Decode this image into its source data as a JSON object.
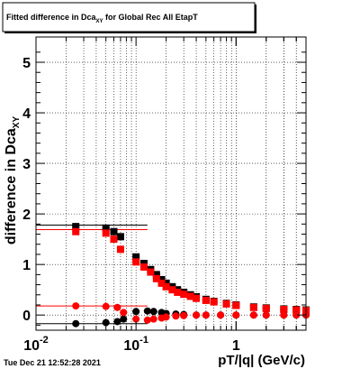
{
  "chart_data": {
    "type": "scatter",
    "title_main": "Fitted difference in Dca",
    "title_sub": "XY",
    "title_tail": " for Global Rec All EtapT",
    "xlabel": "pT/|q| (GeV/c)",
    "ylabel_main": "difference in Dca",
    "ylabel_sub": "XY",
    "timestamp": "Tue Dec 21 12:52:28 2021",
    "xscale": "log",
    "xlim": [
      0.01,
      5.0
    ],
    "ylim": [
      -0.3,
      5.5
    ],
    "grid": true,
    "x_ticks": [
      {
        "value": 0.01,
        "label": "10",
        "exp": "-2"
      },
      {
        "value": 0.1,
        "label": "10",
        "exp": "-1"
      },
      {
        "value": 1,
        "label": "1",
        "exp": ""
      }
    ],
    "y_ticks": [
      {
        "value": 0,
        "label": "0"
      },
      {
        "value": 1,
        "label": "1"
      },
      {
        "value": 2,
        "label": "2"
      },
      {
        "value": 3,
        "label": "3"
      },
      {
        "value": 4,
        "label": "4"
      },
      {
        "value": 5,
        "label": "5"
      }
    ],
    "series": [
      {
        "color": "#000000",
        "marker": "square",
        "x": [
          0.025,
          0.05,
          0.06,
          0.07,
          0.1,
          0.12,
          0.14,
          0.16,
          0.18,
          0.2,
          0.23,
          0.26,
          0.3,
          0.35,
          0.4,
          0.5,
          0.6,
          0.8,
          1.0,
          1.5,
          2.0,
          3.0,
          4.0,
          5.0
        ],
        "y": [
          1.75,
          1.72,
          1.65,
          1.55,
          1.15,
          1.02,
          0.9,
          0.8,
          0.7,
          0.63,
          0.56,
          0.5,
          0.45,
          0.4,
          0.36,
          0.31,
          0.27,
          0.23,
          0.2,
          0.16,
          0.14,
          0.12,
          0.11,
          0.1
        ]
      },
      {
        "color": "#ff0000",
        "marker": "square",
        "x": [
          0.025,
          0.05,
          0.06,
          0.07,
          0.1,
          0.12,
          0.14,
          0.16,
          0.18,
          0.2,
          0.23,
          0.26,
          0.3,
          0.35,
          0.4,
          0.5,
          0.6,
          0.8,
          1.0,
          1.5,
          2.0,
          3.0,
          4.0,
          5.0
        ],
        "y": [
          1.65,
          1.62,
          1.5,
          1.3,
          1.05,
          0.95,
          0.85,
          0.72,
          0.63,
          0.56,
          0.5,
          0.45,
          0.41,
          0.37,
          0.33,
          0.29,
          0.26,
          0.22,
          0.19,
          0.15,
          0.13,
          0.11,
          0.1,
          0.09
        ]
      },
      {
        "color": "#000000",
        "marker": "circle",
        "x": [
          0.025,
          0.05,
          0.065,
          0.075,
          0.1,
          0.13,
          0.15,
          0.18,
          0.2,
          0.25,
          0.3,
          0.4,
          0.5,
          0.7,
          1.0,
          1.5,
          2.0,
          3.0,
          4.0,
          5.0
        ],
        "y": [
          -0.17,
          -0.15,
          -0.13,
          -0.08,
          0.07,
          0.08,
          0.07,
          0.05,
          0.03,
          0.02,
          0.01,
          0.0,
          0.0,
          0.0,
          0.0,
          0.0,
          0.0,
          0.0,
          0.0,
          0.0
        ]
      },
      {
        "color": "#ff0000",
        "marker": "circle",
        "x": [
          0.025,
          0.05,
          0.065,
          0.075,
          0.1,
          0.13,
          0.15,
          0.18,
          0.2,
          0.25,
          0.3,
          0.4,
          0.5,
          0.7,
          1.0,
          1.5,
          2.0,
          3.0,
          4.0,
          5.0
        ],
        "y": [
          0.18,
          0.17,
          0.15,
          0.05,
          -0.08,
          -0.1,
          -0.08,
          -0.06,
          -0.04,
          -0.02,
          -0.01,
          0.0,
          0.0,
          0.0,
          0.0,
          0.0,
          0.0,
          0.0,
          0.0,
          0.0
        ]
      }
    ],
    "fit_lines": [
      {
        "color": "#000000",
        "y": 1.78
      },
      {
        "color": "#ff0000",
        "y": 1.69
      },
      {
        "color": "#000000",
        "y": -0.17
      },
      {
        "color": "#ff0000",
        "y": 0.18
      }
    ]
  }
}
